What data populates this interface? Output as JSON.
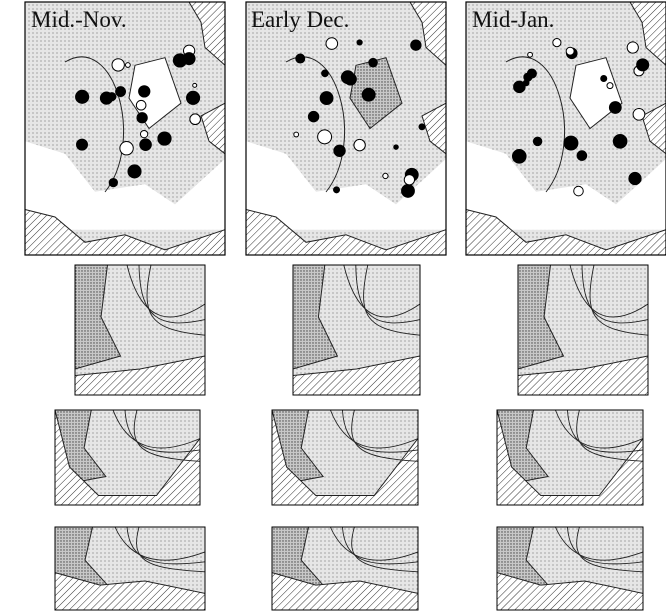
{
  "panels": [
    {
      "label": "Mid.-Nov."
    },
    {
      "label": "Early Dec."
    },
    {
      "label": "Mid-Jan."
    }
  ]
}
